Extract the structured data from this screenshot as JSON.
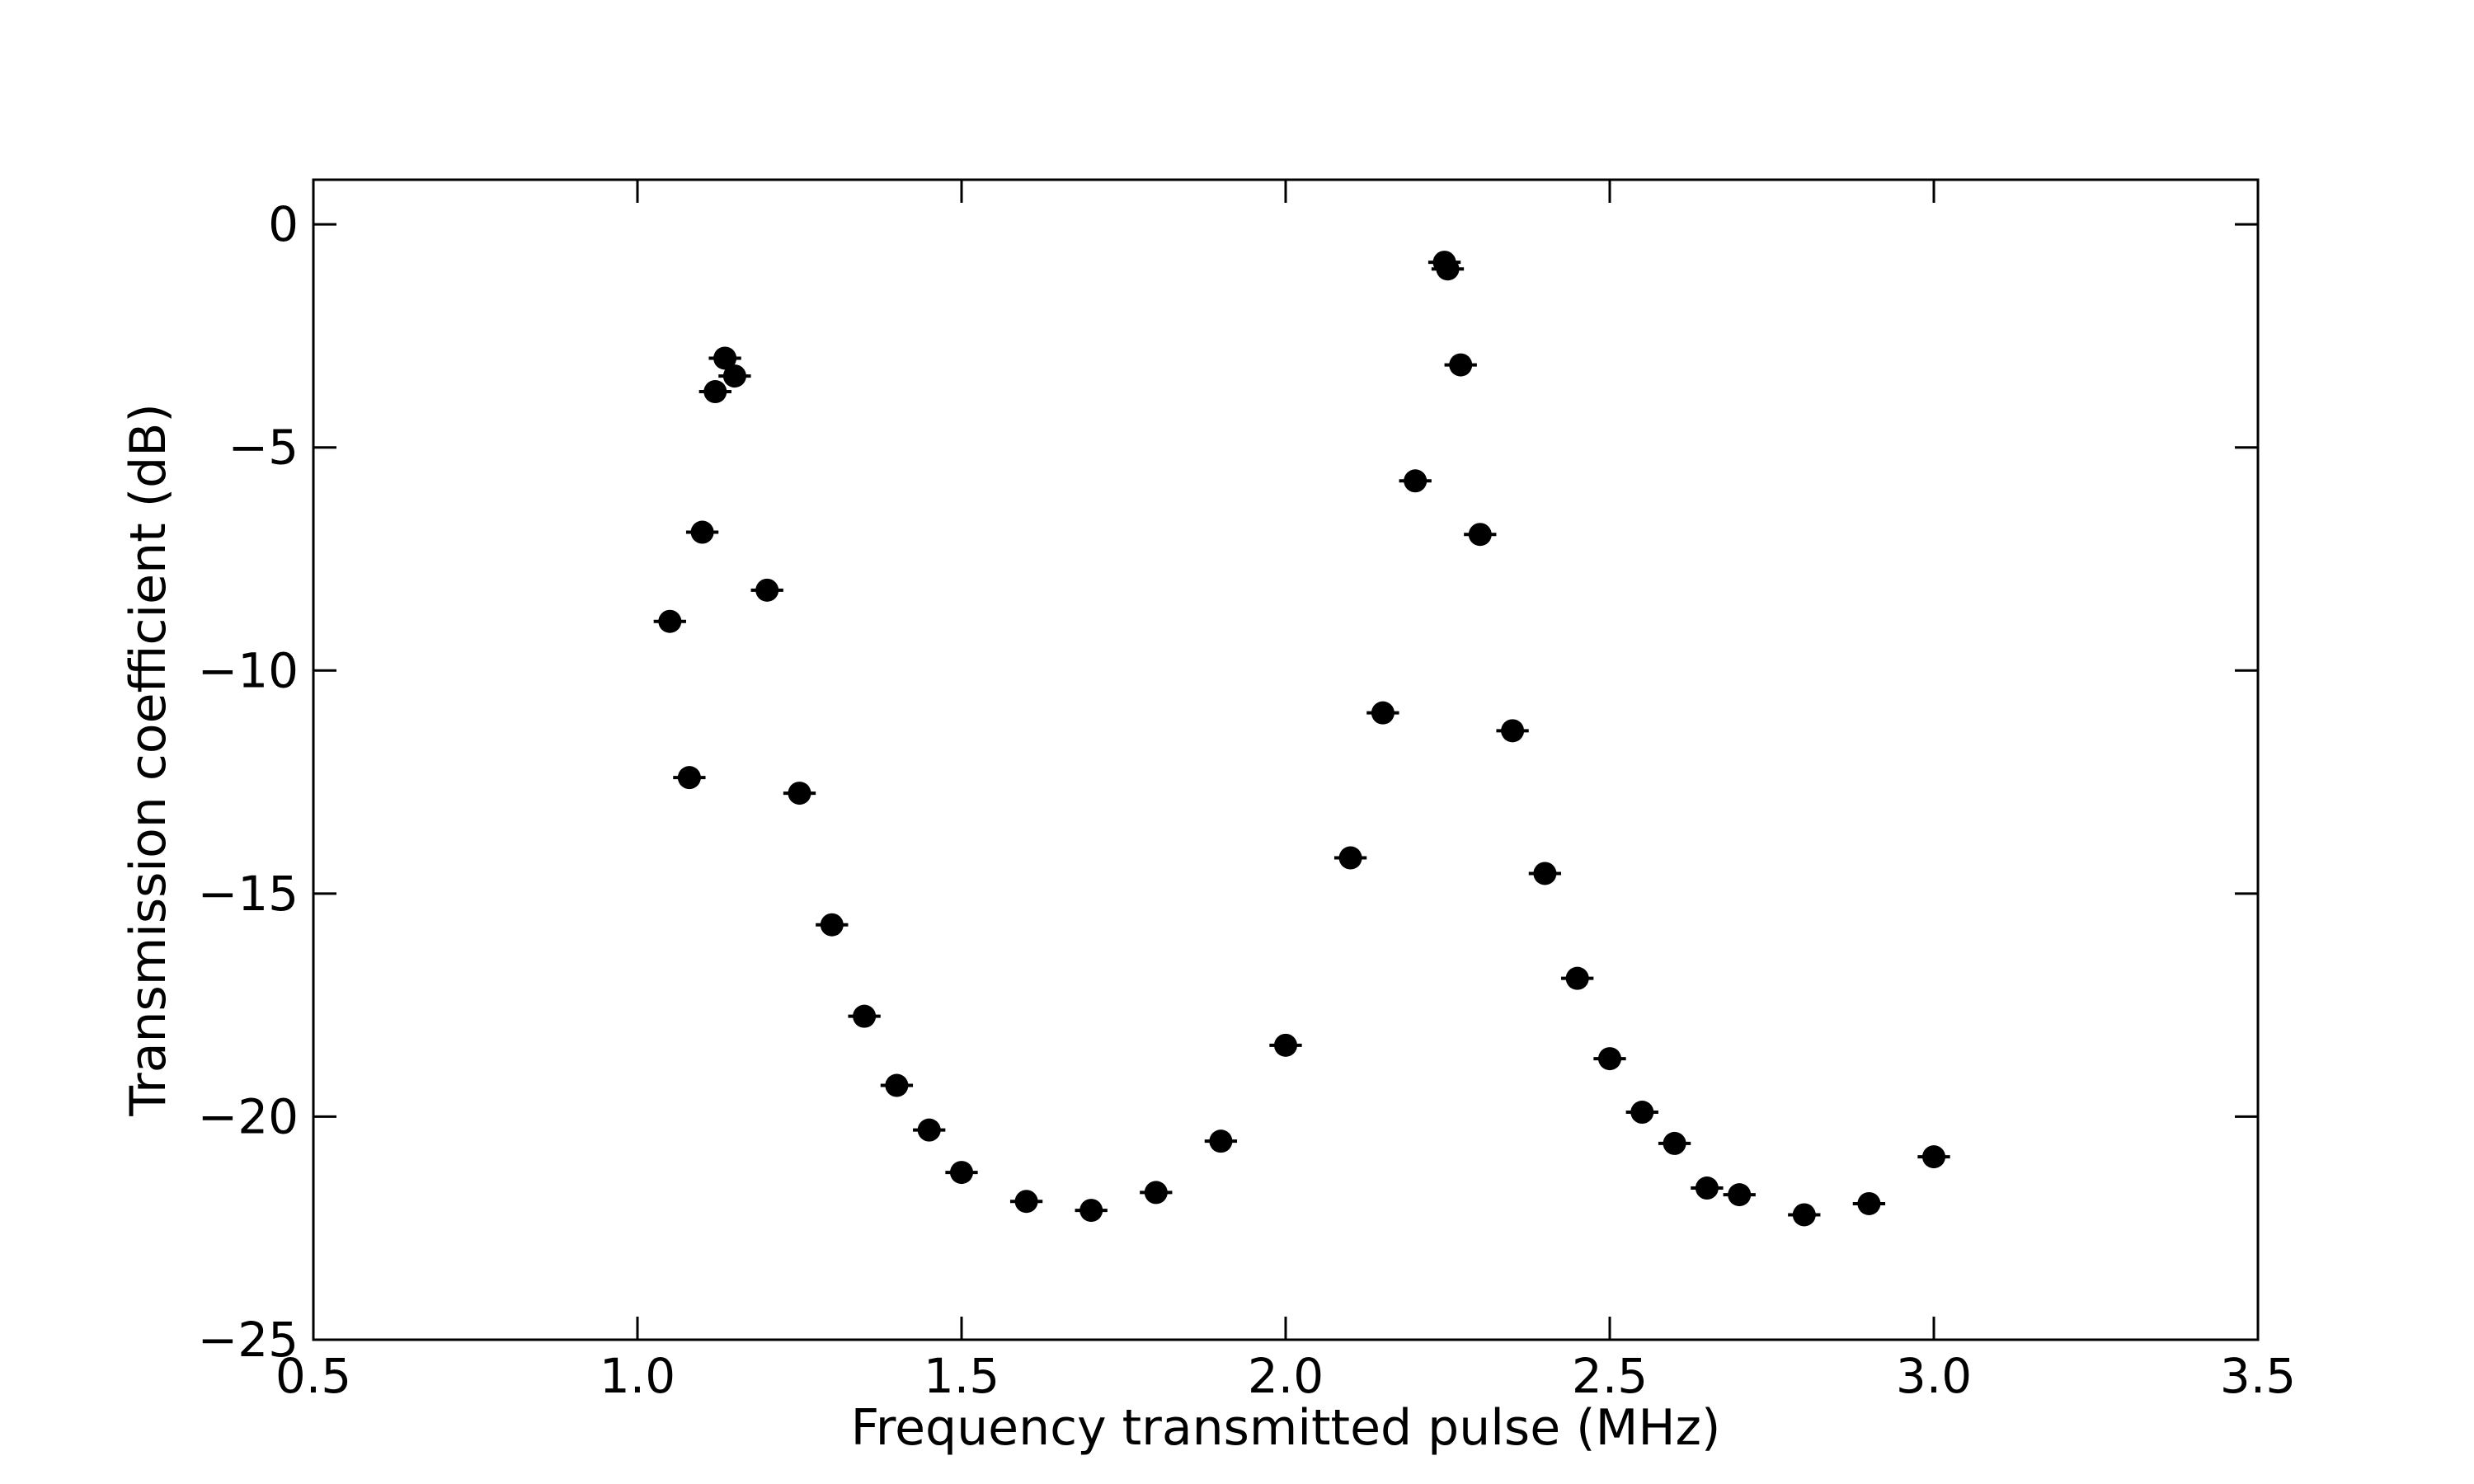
{
  "chart_data": {
    "type": "scatter",
    "title": "",
    "xlabel": "Frequency transmitted pulse (MHz)",
    "ylabel": "Transmission coefficient (dB)",
    "xlim": [
      0.5,
      3.5
    ],
    "ylim": [
      -25,
      1
    ],
    "xticks": [
      0.5,
      1.0,
      1.5,
      2.0,
      2.5,
      3.0,
      3.5
    ],
    "xtick_labels": [
      "0.5",
      "1.0",
      "1.5",
      "2.0",
      "2.5",
      "3.0",
      "3.5"
    ],
    "yticks": [
      0,
      -5,
      -10,
      -15,
      -20,
      -25
    ],
    "ytick_labels": [
      "0",
      "−5",
      "−10",
      "−15",
      "−20",
      "−25"
    ],
    "grid": false,
    "marker_color": "#000000",
    "series": [
      {
        "x_error": 0.025,
        "points": [
          {
            "x": 1.05,
            "y": -8.9
          },
          {
            "x": 1.08,
            "y": -12.4
          },
          {
            "x": 1.1,
            "y": -6.9
          },
          {
            "x": 1.12,
            "y": -3.75
          },
          {
            "x": 1.135,
            "y": -3.0
          },
          {
            "x": 1.15,
            "y": -3.4
          },
          {
            "x": 1.2,
            "y": -8.2
          },
          {
            "x": 1.25,
            "y": -12.75
          },
          {
            "x": 1.3,
            "y": -15.7
          },
          {
            "x": 1.35,
            "y": -17.75
          },
          {
            "x": 1.4,
            "y": -19.3
          },
          {
            "x": 1.45,
            "y": -20.3
          },
          {
            "x": 1.5,
            "y": -21.25
          },
          {
            "x": 1.6,
            "y": -21.9
          },
          {
            "x": 1.7,
            "y": -22.1
          },
          {
            "x": 1.8,
            "y": -21.7
          },
          {
            "x": 1.9,
            "y": -20.55
          },
          {
            "x": 2.0,
            "y": -18.4
          },
          {
            "x": 2.1,
            "y": -14.2
          },
          {
            "x": 2.15,
            "y": -10.95
          },
          {
            "x": 2.2,
            "y": -5.75
          },
          {
            "x": 2.245,
            "y": -0.85
          },
          {
            "x": 2.25,
            "y": -1.0
          },
          {
            "x": 2.27,
            "y": -3.15
          },
          {
            "x": 2.3,
            "y": -6.95
          },
          {
            "x": 2.35,
            "y": -11.35
          },
          {
            "x": 2.4,
            "y": -14.55
          },
          {
            "x": 2.45,
            "y": -16.9
          },
          {
            "x": 2.5,
            "y": -18.7
          },
          {
            "x": 2.55,
            "y": -19.9
          },
          {
            "x": 2.6,
            "y": -20.6
          },
          {
            "x": 2.65,
            "y": -21.6
          },
          {
            "x": 2.7,
            "y": -21.75
          },
          {
            "x": 2.8,
            "y": -22.2
          },
          {
            "x": 2.9,
            "y": -21.95
          },
          {
            "x": 3.0,
            "y": -20.9
          }
        ]
      }
    ]
  }
}
